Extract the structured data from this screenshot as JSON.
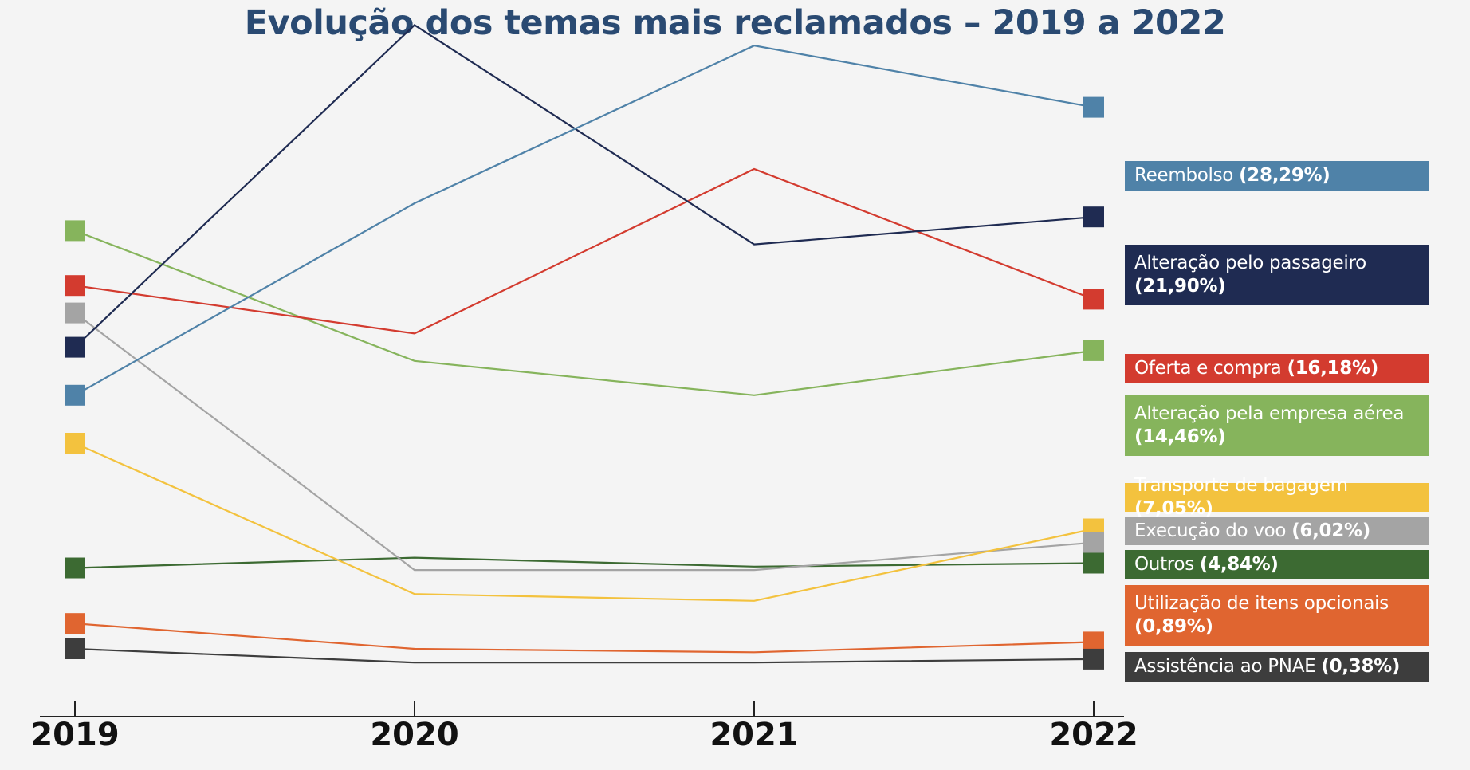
{
  "chart_data": {
    "type": "line",
    "title": "Evolução dos temas mais reclamados – 2019 a 2022",
    "categories": [
      "2019",
      "2020",
      "2021",
      "2022"
    ],
    "ylim": [
      0,
      100
    ],
    "grid": false,
    "legend_position": "right",
    "series": [
      {
        "name": "Reembolso",
        "pct_label": "(28,29%)",
        "color": "#4f82a8",
        "values": [
          47,
          75,
          98,
          89
        ]
      },
      {
        "name": "Alteração pelo passageiro",
        "pct_label": "(21,90%)",
        "color": "#1f2b52",
        "values": [
          54,
          101,
          69,
          73
        ]
      },
      {
        "name": "Oferta e compra",
        "pct_label": "(16,18%)",
        "color": "#d33b2f",
        "values": [
          63,
          56,
          80,
          61
        ]
      },
      {
        "name": "Alteração pela empresa aérea",
        "pct_label": "(14,46%)",
        "color": "#86b45c",
        "values": [
          71,
          52,
          47,
          53.5
        ]
      },
      {
        "name": "Transporte de bagagem",
        "pct_label": "(7,05%)",
        "color": "#f3c23e",
        "values": [
          40,
          18,
          17,
          27.5
        ]
      },
      {
        "name": "Execução do voo",
        "pct_label": "(6,02%)",
        "color": "#a4a4a4",
        "values": [
          59,
          21.5,
          21.5,
          25.5
        ]
      },
      {
        "name": "Outros",
        "pct_label": "(4,84%)",
        "color": "#3c6a32",
        "values": [
          21.8,
          23.3,
          22,
          22.5
        ]
      },
      {
        "name": "Utilização de itens opcionais",
        "pct_label": "(0,89%)",
        "color": "#e06530",
        "values": [
          13.7,
          10,
          9.5,
          11
        ]
      },
      {
        "name": "Assistência ao PNAE",
        "pct_label": "(0,38%)",
        "color": "#3d3d3d",
        "values": [
          10,
          8,
          8,
          8.5
        ]
      }
    ]
  }
}
